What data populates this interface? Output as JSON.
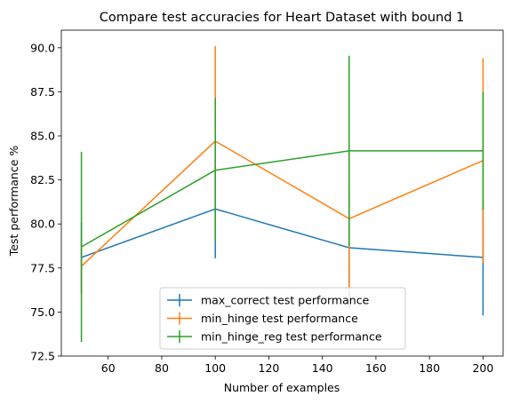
{
  "chart_data": {
    "type": "line",
    "title": "Compare test accuracies for Heart Dataset with bound 1",
    "xlabel": "Number of examples",
    "ylabel": "Test performance %",
    "x": [
      50,
      100,
      150,
      200
    ],
    "xlim": [
      42.5,
      207.5
    ],
    "ylim": [
      72.5,
      91.0
    ],
    "xticks": [
      60,
      80,
      100,
      120,
      140,
      160,
      180,
      200
    ],
    "xtick_labels": [
      "60",
      "80",
      "100",
      "120",
      "140",
      "160",
      "180",
      "200"
    ],
    "yticks": [
      72.5,
      75.0,
      77.5,
      80.0,
      82.5,
      85.0,
      87.5,
      90.0
    ],
    "ytick_labels": [
      "72.5",
      "75.0",
      "77.5",
      "80.0",
      "82.5",
      "85.0",
      "87.5",
      "90.0"
    ],
    "grid": false,
    "legend_position": "lower-center",
    "series": [
      {
        "name": "max_correct test performance",
        "color": "#1f77b4",
        "values": [
          78.1,
          80.85,
          78.65,
          78.1
        ],
        "errors": [
          2.0,
          2.8,
          3.5,
          3.3
        ]
      },
      {
        "name": "min_hinge test performance",
        "color": "#ff7f0e",
        "values": [
          77.6,
          84.7,
          80.3,
          83.6
        ],
        "errors": [
          1.6,
          5.4,
          4.1,
          5.8
        ]
      },
      {
        "name": "min_hinge_reg test performance",
        "color": "#2ca02c",
        "values": [
          78.7,
          83.05,
          84.15,
          84.15
        ],
        "errors": [
          5.4,
          4.1,
          5.4,
          3.35
        ]
      }
    ]
  }
}
